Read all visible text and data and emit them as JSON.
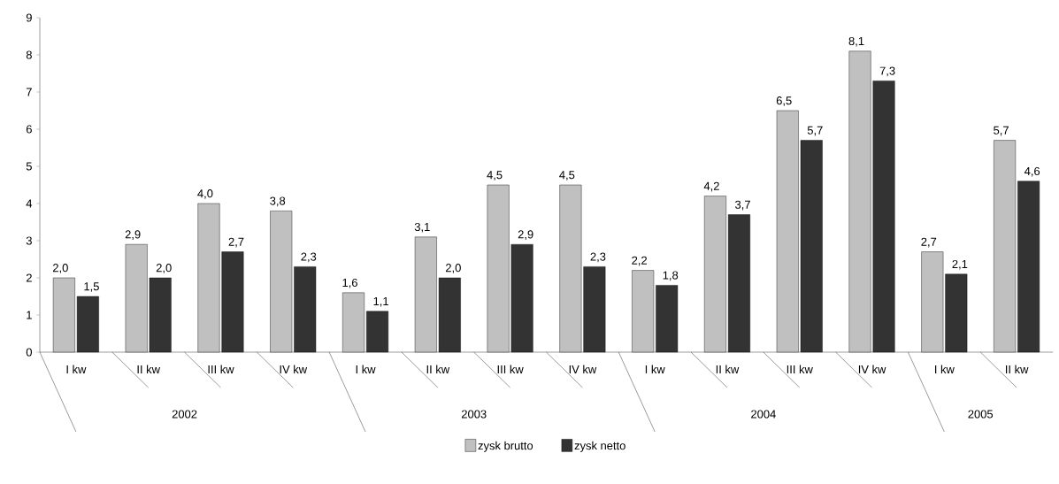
{
  "chart_data": {
    "type": "bar",
    "categories": [
      "I kw",
      "II kw",
      "III kw",
      "IV kw",
      "I kw",
      "II kw",
      "III kw",
      "IV kw",
      "I kw",
      "II kw",
      "III kw",
      "IV kw",
      "I kw",
      "II kw"
    ],
    "series": [
      {
        "name": "zysk brutto",
        "color": "#c0c0c0",
        "values": [
          2.0,
          2.9,
          4.0,
          3.8,
          1.6,
          3.1,
          4.5,
          4.5,
          2.2,
          4.2,
          6.5,
          8.1,
          2.7,
          5.7
        ],
        "value_labels": [
          "2,0",
          "2,9",
          "4,0",
          "3,8",
          "1,6",
          "3,1",
          "4,5",
          "4,5",
          "2,2",
          "4,2",
          "6,5",
          "8,1",
          "2,7",
          "5,7"
        ]
      },
      {
        "name": "zysk netto",
        "color": "#333333",
        "values": [
          1.5,
          2.0,
          2.7,
          2.3,
          1.1,
          2.0,
          2.9,
          2.3,
          1.8,
          3.7,
          5.7,
          7.3,
          2.1,
          4.6
        ],
        "value_labels": [
          "1,5",
          "2,0",
          "2,7",
          "2,3",
          "1,1",
          "2,0",
          "2,9",
          "2,3",
          "1,8",
          "3,7",
          "5,7",
          "7,3",
          "2,1",
          "4,6"
        ]
      }
    ],
    "annotations": [
      "2002",
      "2003",
      "2004",
      "2005"
    ],
    "ylim": [
      0,
      9
    ],
    "yticks": [
      0,
      1,
      2,
      3,
      4,
      5,
      6,
      7,
      8,
      9
    ],
    "legend": "bottom",
    "grid": false
  }
}
